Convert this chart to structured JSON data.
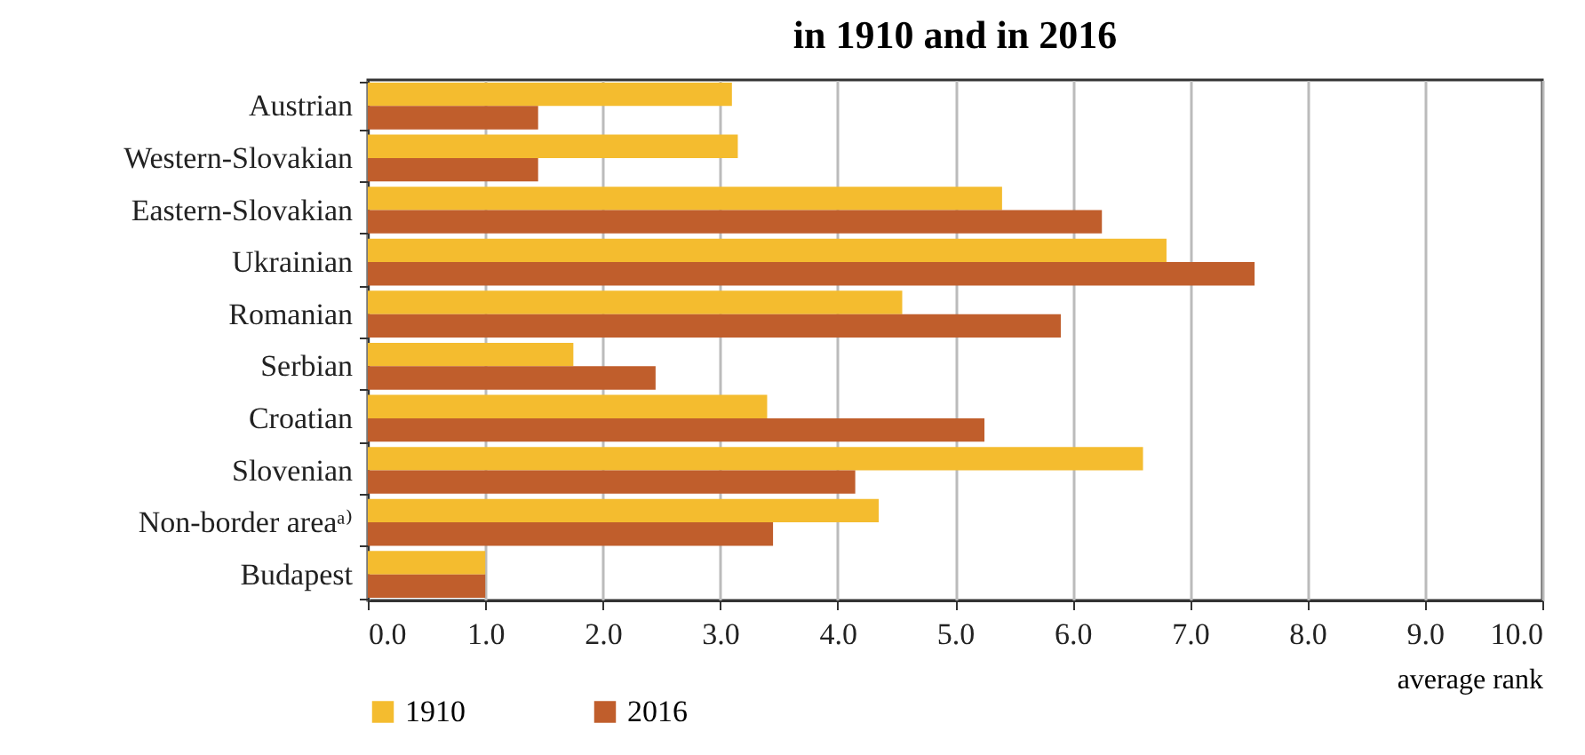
{
  "chart_data": {
    "type": "bar",
    "orientation": "horizontal",
    "title": "in 1910 and in 2016",
    "xlabel": "average rank",
    "categories": [
      "Austrian",
      "Western-Slovakian",
      "Eastern-Slovakian",
      "Ukrainian",
      "Romanian",
      "Serbian",
      "Croatian",
      "Slovenian",
      "Non-border areaᵃ⁾",
      "Budapest"
    ],
    "series": [
      {
        "name": "1910",
        "color": "#f4bc2f",
        "values": [
          3.1,
          3.15,
          5.4,
          6.8,
          4.55,
          1.75,
          3.4,
          6.6,
          4.35,
          1.0
        ]
      },
      {
        "name": "2016",
        "color": "#c05e2c",
        "values": [
          1.45,
          1.45,
          6.25,
          7.55,
          5.9,
          2.45,
          5.25,
          4.15,
          3.45,
          1.0
        ]
      }
    ],
    "xlim": [
      0,
      10
    ],
    "xticks": [
      {
        "value": 0,
        "label": "0.0"
      },
      {
        "value": 1,
        "label": "1.0"
      },
      {
        "value": 2,
        "label": "2.0"
      },
      {
        "value": 3,
        "label": "3.0"
      },
      {
        "value": 4,
        "label": "4.0"
      },
      {
        "value": 5,
        "label": "5.0"
      },
      {
        "value": 6,
        "label": "6.0"
      },
      {
        "value": 7,
        "label": "7.0"
      },
      {
        "value": 8,
        "label": "8.0"
      },
      {
        "value": 9,
        "label": "9.0"
      },
      {
        "value": 10,
        "label": "10.0"
      }
    ],
    "grid": "x",
    "legend": "bottom"
  }
}
